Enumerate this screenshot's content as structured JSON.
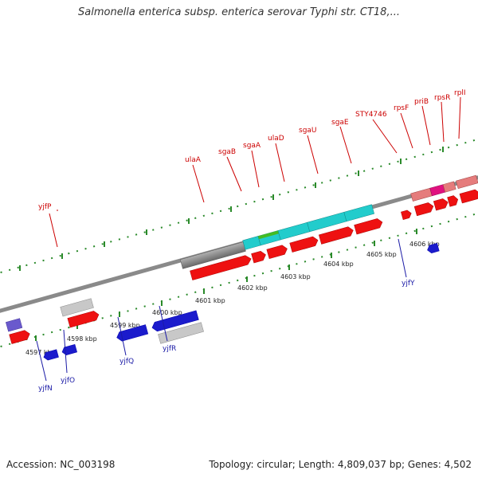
{
  "header": {
    "title": "Salmonella enterica subsp. enterica serovar Typhi str. CT18,..."
  },
  "footer": {
    "accession": "Accession: NC_003198",
    "summary": "Topology: circular; Length: 4,809,037 bp; Genes: 4,502"
  },
  "scale_labels": [
    "4597 kbp",
    "4598 kbp",
    "4599 kbp",
    "4600 kbp",
    "4601 kbp",
    "4602 kbp",
    "4603 kbp",
    "4604 kbp",
    "4605 kbp",
    "4606 kbp"
  ],
  "upper_gene_labels": [
    "yjfP",
    "ulaA",
    "sgaB",
    "sgaA",
    "ulaD",
    "sgaU",
    "sgaE",
    "STY4746",
    "rpsF",
    "priB",
    "rpsR",
    "rplI"
  ],
  "lower_gene_labels": [
    "yjfN",
    "yjfO",
    "yjfQ",
    "yjfR",
    "yjfY"
  ],
  "colors": {
    "upper_label": "#cc0000",
    "lower_label": "#1a1aa6",
    "red": "#ee1111",
    "blue": "#1b1bcc",
    "grey": "#c8c8c8",
    "dark_grey": "#5a5a5a",
    "cyan": "#22cccc",
    "green": "#44bb22",
    "pink": "#e57c7c",
    "magenta": "#e0117f",
    "tick": "#2a8a2a",
    "backbone": "#8a8a8a"
  }
}
